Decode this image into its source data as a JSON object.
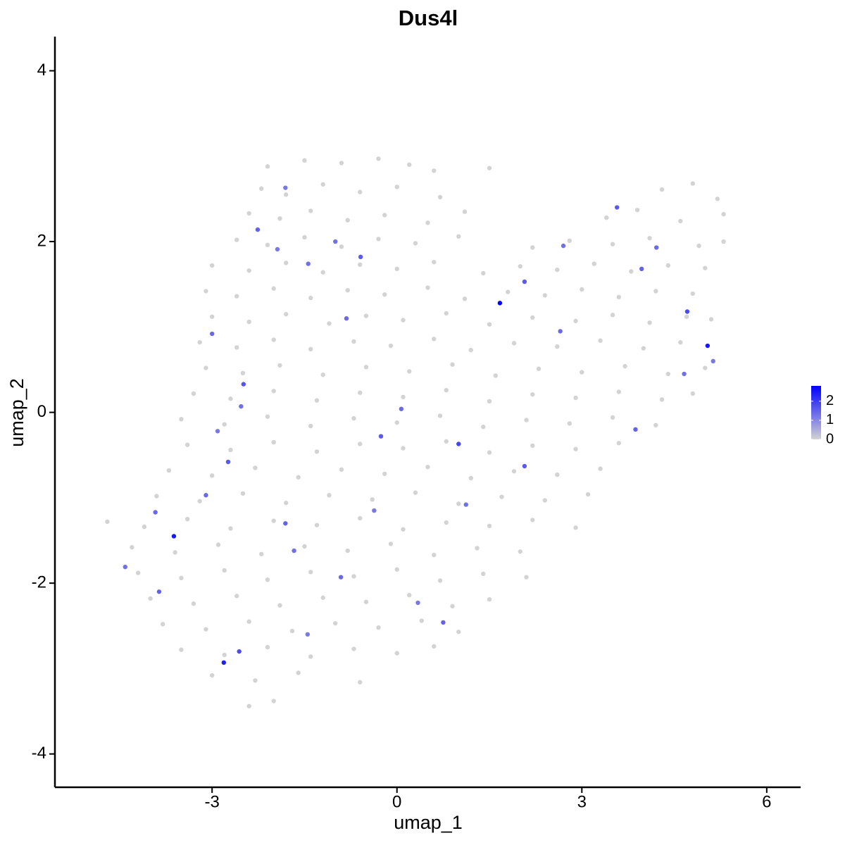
{
  "chart_data": {
    "type": "scatter",
    "title": "Dus4l",
    "x_label": "umap_1",
    "y_label": "umap_2",
    "xlim": [
      -5.55,
      6.55
    ],
    "xticks": [
      -3,
      0,
      3,
      6
    ],
    "ylim": [
      -4.39,
      4.4
    ],
    "yticks": [
      -4,
      -2,
      0,
      2,
      4
    ],
    "color_low": "#d3d3d3",
    "color_high": "#0000ff",
    "clim": [
      0,
      2.8
    ],
    "cticks": [
      0,
      1,
      2
    ],
    "x": [
      -2.1,
      -1.5,
      -0.9,
      -0.3,
      0.2,
      0.6,
      1.5,
      -2.2,
      -1.8,
      -1.2,
      -0.6,
      0.0,
      0.7,
      4.3,
      4.8,
      5.2,
      -2.4,
      -1.9,
      -1.4,
      -0.8,
      -0.2,
      0.5,
      1.1,
      3.4,
      3.9,
      4.6,
      5.3,
      -2.6,
      -2.1,
      -1.5,
      -0.9,
      -0.3,
      0.3,
      1.0,
      2.2,
      2.8,
      3.5,
      4.1,
      4.9,
      5.3,
      -3.0,
      -2.4,
      -1.8,
      -1.2,
      -0.6,
      0.0,
      0.6,
      1.4,
      2.0,
      2.6,
      3.2,
      3.8,
      4.4,
      5.0,
      -3.1,
      -2.6,
      -2.0,
      -1.4,
      -0.8,
      -0.2,
      0.5,
      1.1,
      1.8,
      2.4,
      3.0,
      3.6,
      4.2,
      4.8,
      -3.0,
      -2.4,
      -1.8,
      -1.1,
      -0.5,
      0.1,
      0.8,
      1.5,
      2.2,
      2.9,
      3.5,
      4.1,
      4.7,
      5.1,
      -3.2,
      -2.6,
      -2.0,
      -1.4,
      -0.7,
      -0.1,
      0.6,
      1.2,
      1.9,
      2.6,
      3.3,
      4.0,
      4.6,
      -3.1,
      -2.5,
      -1.9,
      -1.2,
      -0.5,
      0.2,
      0.9,
      1.6,
      2.3,
      3.0,
      3.7,
      4.4,
      5.0,
      -3.3,
      -2.7,
      -2.0,
      -1.3,
      -0.6,
      0.1,
      0.8,
      1.5,
      2.2,
      2.9,
      3.6,
      4.3,
      4.8,
      -3.5,
      -2.8,
      -2.1,
      -1.4,
      -0.7,
      0.0,
      0.7,
      1.4,
      2.1,
      2.8,
      3.5,
      4.2,
      -3.4,
      -2.7,
      -2.0,
      -1.3,
      -0.6,
      0.1,
      0.8,
      1.5,
      2.2,
      2.9,
      3.6,
      -3.7,
      -3.0,
      -2.3,
      -1.6,
      -0.9,
      -0.2,
      0.5,
      1.2,
      1.9,
      2.6,
      3.3,
      -3.9,
      -3.2,
      -2.5,
      -1.8,
      -1.1,
      -0.4,
      0.3,
      1.0,
      1.7,
      2.4,
      3.1,
      -4.7,
      -4.1,
      -3.4,
      -2.7,
      -2.0,
      -1.3,
      -0.6,
      0.1,
      0.8,
      1.5,
      2.2,
      2.9,
      -4.3,
      -3.6,
      -2.9,
      -2.2,
      -1.5,
      -0.8,
      -0.1,
      0.6,
      1.3,
      2.0,
      -4.2,
      -3.5,
      -2.8,
      -2.1,
      -1.4,
      -0.7,
      0.0,
      0.7,
      1.4,
      2.1,
      -4.0,
      -3.3,
      -2.6,
      -1.9,
      -1.2,
      -0.5,
      0.2,
      0.9,
      1.5,
      -3.8,
      -3.1,
      -2.4,
      -1.7,
      -1.0,
      -0.3,
      0.4,
      1.0,
      -3.5,
      -2.8,
      -2.1,
      -1.4,
      -0.7,
      0.0,
      0.6,
      -3.0,
      -2.3,
      -1.6,
      -0.6,
      -2.4,
      -2.0,
      -1.0,
      -0.59,
      -1.94,
      -2.26,
      -3.0,
      -2.49,
      -2.53,
      -2.91,
      -2.74,
      -3.1,
      -1.81,
      -1.67,
      -1.45,
      -2.56,
      -0.82,
      -0.26,
      1.0,
      1.12,
      0.75,
      0.34,
      -0.91,
      2.7,
      3.57,
      3.97,
      4.21,
      4.71,
      4.66,
      5.13,
      3.87,
      2.65,
      2.07,
      -1.44,
      -1.81,
      -3.86,
      -3.92,
      -4.41,
      2.07,
      -0.37,
      0.07,
      1.67,
      5.04,
      -3.62,
      -2.81
    ],
    "y": [
      2.88,
      2.95,
      2.92,
      2.97,
      2.9,
      2.83,
      2.86,
      2.62,
      2.55,
      2.67,
      2.58,
      2.64,
      2.52,
      2.61,
      2.68,
      2.5,
      2.33,
      2.27,
      2.36,
      2.25,
      2.31,
      2.22,
      2.35,
      2.28,
      2.37,
      2.24,
      2.32,
      2.02,
      1.96,
      2.05,
      1.94,
      2.03,
      1.98,
      2.06,
      1.93,
      2.01,
      1.97,
      2.04,
      1.95,
      2.0,
      1.72,
      1.66,
      1.75,
      1.64,
      1.73,
      1.68,
      1.76,
      1.63,
      1.71,
      1.67,
      1.74,
      1.65,
      1.72,
      1.69,
      1.42,
      1.36,
      1.45,
      1.34,
      1.43,
      1.38,
      1.46,
      1.33,
      1.41,
      1.37,
      1.44,
      1.35,
      1.42,
      1.39,
      1.12,
      1.06,
      1.15,
      1.04,
      1.13,
      1.08,
      1.16,
      1.03,
      1.11,
      1.07,
      1.14,
      1.05,
      1.12,
      1.09,
      0.82,
      0.76,
      0.85,
      0.74,
      0.83,
      0.78,
      0.86,
      0.73,
      0.81,
      0.77,
      0.84,
      0.75,
      0.82,
      0.52,
      0.46,
      0.55,
      0.44,
      0.53,
      0.48,
      0.56,
      0.43,
      0.51,
      0.47,
      0.54,
      0.45,
      0.52,
      0.22,
      0.16,
      0.25,
      0.14,
      0.23,
      0.18,
      0.26,
      0.13,
      0.21,
      0.17,
      0.24,
      0.15,
      0.22,
      -0.08,
      -0.14,
      -0.05,
      -0.16,
      -0.07,
      -0.12,
      -0.04,
      -0.17,
      -0.09,
      -0.13,
      -0.06,
      -0.15,
      -0.38,
      -0.44,
      -0.35,
      -0.46,
      -0.37,
      -0.42,
      -0.34,
      -0.47,
      -0.39,
      -0.43,
      -0.36,
      -0.68,
      -0.74,
      -0.65,
      -0.76,
      -0.67,
      -0.72,
      -0.64,
      -0.77,
      -0.69,
      -0.73,
      -0.66,
      -0.98,
      -1.04,
      -0.95,
      -1.06,
      -0.97,
      -1.02,
      -0.94,
      -1.07,
      -0.99,
      -1.03,
      -0.96,
      -1.28,
      -1.34,
      -1.25,
      -1.36,
      -1.27,
      -1.32,
      -1.24,
      -1.37,
      -1.29,
      -1.33,
      -1.26,
      -1.35,
      -1.58,
      -1.64,
      -1.55,
      -1.66,
      -1.57,
      -1.62,
      -1.54,
      -1.67,
      -1.59,
      -1.63,
      -1.88,
      -1.94,
      -1.85,
      -1.96,
      -1.87,
      -1.92,
      -1.84,
      -1.97,
      -1.89,
      -1.93,
      -2.18,
      -2.24,
      -2.15,
      -2.26,
      -2.17,
      -2.22,
      -2.14,
      -2.27,
      -2.19,
      -2.48,
      -2.54,
      -2.45,
      -2.56,
      -2.47,
      -2.52,
      -2.44,
      -2.57,
      -2.78,
      -2.84,
      -2.75,
      -2.86,
      -2.77,
      -2.82,
      -2.74,
      -3.08,
      -3.14,
      -3.05,
      -3.16,
      -3.44,
      -3.38,
      2.0,
      1.82,
      1.91,
      2.14,
      0.92,
      0.33,
      0.07,
      -0.22,
      -0.58,
      -0.97,
      -1.3,
      -1.62,
      -2.6,
      -2.8,
      1.1,
      -0.28,
      -0.37,
      -1.08,
      -2.46,
      -2.23,
      -1.93,
      1.95,
      2.4,
      1.68,
      1.93,
      1.18,
      0.45,
      0.6,
      -0.2,
      0.95,
      1.53,
      1.74,
      2.63,
      -2.1,
      -1.17,
      -1.81,
      -0.63,
      -1.15,
      0.04,
      1.28,
      0.78,
      -1.45,
      -2.93
    ],
    "values": [
      0,
      0,
      0,
      0,
      0,
      0,
      0,
      0,
      0,
      0,
      0,
      0,
      0,
      0,
      0,
      0,
      0,
      0,
      0,
      0,
      0,
      0,
      0,
      0,
      0,
      0,
      0,
      0,
      0,
      0,
      0,
      0,
      0,
      0,
      0,
      0,
      0,
      0,
      0,
      0,
      0,
      0,
      0,
      0,
      0,
      0,
      0,
      0,
      0,
      0,
      0,
      0,
      0,
      0,
      0,
      0,
      0,
      0,
      0,
      0,
      0,
      0,
      0,
      0,
      0,
      0,
      0,
      0,
      0,
      0,
      0,
      0,
      0,
      0,
      0,
      0,
      0,
      0,
      0,
      0,
      0,
      0,
      0,
      0,
      0,
      0,
      0,
      0,
      0,
      0,
      0,
      0,
      0,
      0,
      0,
      0,
      0,
      0,
      0,
      0,
      0,
      0,
      0,
      0,
      0,
      0,
      0,
      0,
      0,
      0,
      0,
      0,
      0,
      0,
      0,
      0,
      0,
      0,
      0,
      0,
      0,
      0,
      0,
      0,
      0,
      0,
      0,
      0,
      0,
      0,
      0,
      0,
      0,
      0,
      0,
      0,
      0,
      0,
      0,
      0,
      0,
      0,
      0,
      0,
      0,
      0,
      0,
      0,
      0,
      0,
      0,
      0,
      0,
      0,
      0,
      0,
      0,
      0,
      0,
      0,
      0,
      0,
      0,
      0,
      0,
      0,
      0,
      0,
      0,
      0,
      0,
      0,
      0,
      0,
      0,
      0,
      0,
      0,
      0,
      0,
      0,
      0,
      0,
      0,
      0,
      0,
      0,
      0,
      0,
      0,
      0,
      0,
      0,
      0,
      0,
      0,
      0,
      0,
      0,
      0,
      0,
      0,
      0,
      0,
      0,
      0,
      0,
      0,
      0,
      0,
      0,
      0,
      0,
      0,
      0,
      0,
      0,
      0,
      0,
      0,
      0,
      0,
      0,
      0,
      0,
      0,
      0,
      0,
      1.3,
      1.6,
      1.2,
      1.5,
      1.4,
      1.7,
      1.3,
      1.2,
      1.6,
      1.4,
      1.5,
      1.3,
      1.2,
      1.8,
      1.4,
      1.6,
      1.9,
      1.3,
      1.5,
      1.2,
      1.4,
      1.3,
      1.6,
      1.5,
      1.4,
      1.8,
      1.3,
      1.2,
      1.5,
      1.4,
      1.6,
      1.3,
      1.2,
      1.5,
      1.4,
      1.3,
      1.6,
      1.2,
      1.4,
      2.8,
      2.5,
      2.5,
      2.4
    ]
  }
}
